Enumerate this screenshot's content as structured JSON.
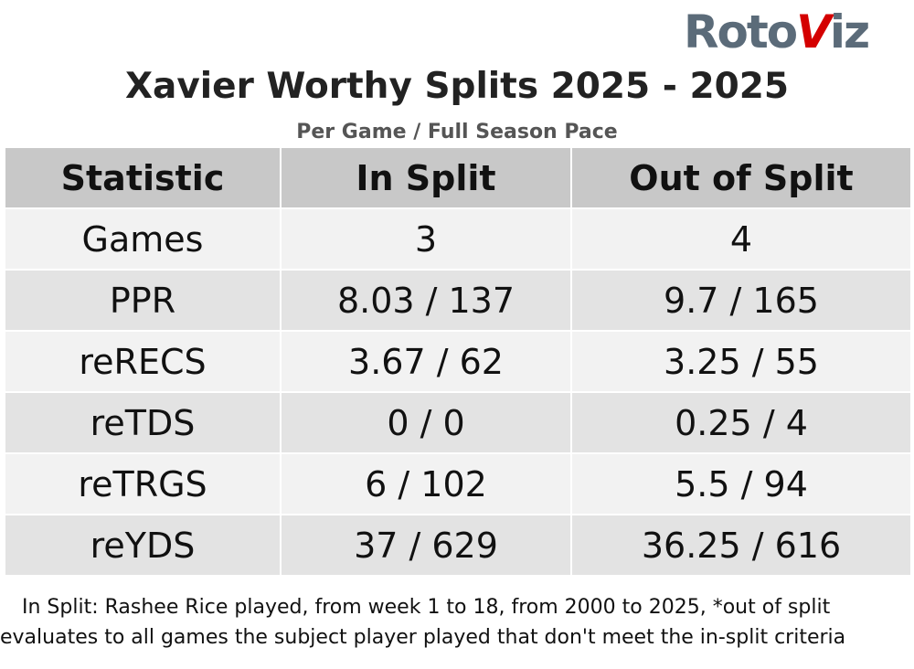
{
  "logo": {
    "left": "Roto",
    "mark": "V",
    "right": "iz"
  },
  "header": {
    "title": "Xavier Worthy Splits 2025 - 2025",
    "subtitle": "Per Game / Full Season Pace"
  },
  "table": {
    "columns": [
      "Statistic",
      "In Split",
      "Out of Split"
    ],
    "rows": [
      [
        "Games",
        "3",
        "4"
      ],
      [
        "PPR",
        "8.03 / 137",
        "9.7 / 165"
      ],
      [
        "reRECS",
        "3.67 / 62",
        "3.25 / 55"
      ],
      [
        "reTDS",
        "0 / 0",
        "0.25 / 4"
      ],
      [
        "reTRGS",
        "6 / 102",
        "5.5 / 94"
      ],
      [
        "reYDS",
        "37 / 629",
        "36.25 / 616"
      ]
    ]
  },
  "footnote": "In Split: Rashee Rice played, from week 1 to 18, from 2000 to 2025,  *out of split evaluates to all games the subject player played that don't meet the in-split criteria"
}
